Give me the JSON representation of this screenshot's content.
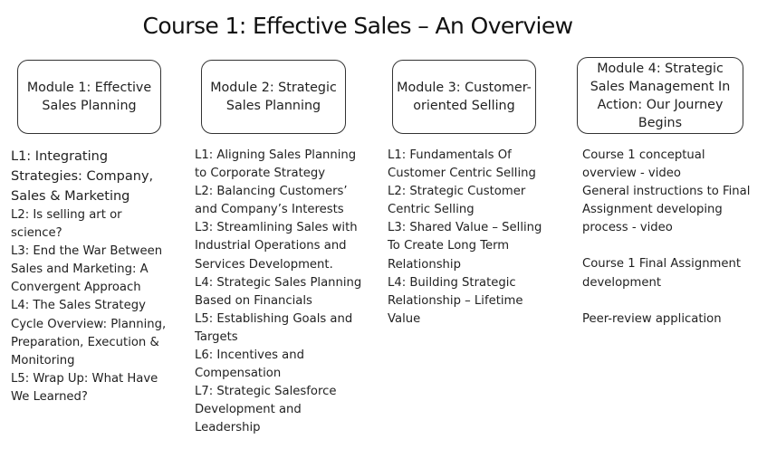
{
  "title": "Course 1: Effective Sales – An Overview",
  "modules": [
    {
      "label": "Module 1: Effective Sales Planning",
      "lessons": [
        "L1: Integrating Strategies: Company, Sales & Marketing",
        "L2: Is selling art or science?",
        "L3: End the War Between Sales and Marketing: A Convergent Approach",
        "L4: The Sales Strategy Cycle Overview: Planning, Preparation, Execution & Monitoring",
        "L5: Wrap Up: What Have We Learned?"
      ]
    },
    {
      "label": "Module 2: Strategic Sales Planning",
      "lessons": [
        "L1: Aligning Sales Planning to Corporate Strategy",
        "L2: Balancing Customers’ and Company’s Interests",
        "L3: Streamlining Sales with Industrial Operations and Services Development.",
        "L4: Strategic Sales Planning Based on Financials",
        "L5: Establishing Goals and Targets",
        "L6: Incentives and Compensation",
        "L7: Strategic Salesforce Development and Leadership"
      ]
    },
    {
      "label": "Module 3: Customer-oriented Selling",
      "lessons": [
        "L1: Fundamentals Of Customer Centric Selling",
        "L2: Strategic Customer Centric Selling",
        "L3: Shared Value – Selling To Create Long Term Relationship",
        "L4: Building Strategic Relationship – Lifetime Value"
      ]
    },
    {
      "label": "Module 4: Strategic Sales Management In Action: Our Journey Begins",
      "lessons": [
        "Course 1 conceptual overview - video",
        "General instructions to Final Assignment developing process - video",
        "Course 1 Final Assignment development",
        "Peer-review application"
      ]
    }
  ]
}
